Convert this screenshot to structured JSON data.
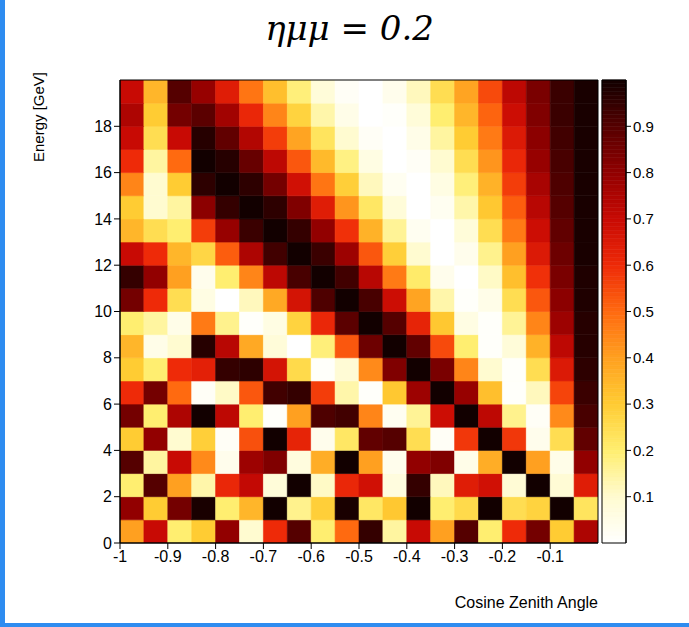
{
  "chart_data": {
    "type": "heatmap",
    "title": "ημμ = 0.2",
    "x_label": "Cosine Zenith Angle",
    "y_label": "Energy [GeV]",
    "xlim": [
      -1,
      0
    ],
    "ylim": [
      0,
      20
    ],
    "xticks": [
      -1,
      -0.9,
      -0.8,
      -0.7,
      -0.6,
      -0.5,
      -0.4,
      -0.3,
      -0.2,
      -0.1
    ],
    "yticks": [
      0,
      2,
      4,
      6,
      8,
      10,
      12,
      14,
      16,
      18
    ],
    "grid": false,
    "x_bins": [
      -1,
      -0.95,
      -0.9,
      -0.85,
      -0.8,
      -0.75,
      -0.7,
      -0.65,
      -0.6,
      -0.55,
      -0.5,
      -0.45,
      -0.4,
      -0.35,
      -0.3,
      -0.25,
      -0.2,
      -0.15,
      -0.1,
      -0.05,
      0
    ],
    "y_bins": [
      0,
      1,
      2,
      3,
      4,
      5,
      6,
      7,
      8,
      9,
      10,
      11,
      12,
      13,
      14,
      15,
      16,
      17,
      18,
      19,
      20
    ],
    "cells": [
      [
        0.4,
        0.7,
        0.2,
        0.3,
        0.8,
        0.1,
        0.6,
        0.9,
        0.2,
        0.5,
        0.95,
        0.15,
        0.7,
        0.4,
        0.9,
        0.2,
        0.6,
        0.85,
        0.3,
        0.75
      ],
      [
        0.8,
        0.3,
        0.85,
        0.99,
        0.2,
        0.35,
        1.0,
        0.17,
        0.29,
        0.99,
        0.22,
        0.31,
        1.0,
        0.2,
        0.26,
        1.0,
        0.25,
        0.28,
        1.0,
        0.23
      ],
      [
        0.2,
        0.9,
        0.4,
        0.14,
        0.61,
        0.71,
        0.08,
        1.0,
        0.11,
        0.61,
        0.68,
        0.07,
        0.95,
        0.12,
        0.64,
        0.68,
        0.09,
        1.0,
        0.09,
        0.64
      ],
      [
        0.9,
        0.15,
        0.7,
        0.44,
        0.04,
        0.78,
        0.83,
        0.07,
        0.37,
        1.0,
        0.4,
        0.04,
        0.8,
        0.83,
        0.05,
        0.37,
        1.0,
        0.4,
        0.05,
        0.8
      ],
      [
        0.3,
        0.8,
        0.1,
        0.29,
        0.02,
        0.54,
        1.0,
        0.62,
        0.04,
        0.22,
        0.88,
        0.9,
        0.25,
        0.02,
        0.58,
        1.0,
        0.58,
        0.04,
        0.25,
        0.88
      ],
      [
        0.85,
        0.2,
        0.75,
        1.0,
        0.72,
        0.2,
        0.01,
        0.4,
        0.91,
        0.93,
        0.45,
        0.03,
        0.16,
        0.69,
        1.0,
        0.72,
        0.17,
        0.02,
        0.44,
        0.92
      ],
      [
        0.6,
        0.85,
        0.5,
        0.02,
        0.11,
        0.53,
        0.93,
        0.95,
        0.57,
        0.14,
        0.01,
        0.31,
        0.78,
        1.0,
        0.79,
        0.33,
        0.01,
        0.12,
        0.56,
        0.94
      ],
      [
        0.3,
        0.2,
        0.6,
        0.63,
        0.95,
        0.96,
        0.67,
        0.26,
        0.01,
        0.09,
        0.44,
        0.83,
        1.0,
        0.84,
        0.45,
        0.1,
        0.01,
        0.25,
        0.65,
        0.96
      ],
      [
        0.35,
        0.05,
        0.1,
        0.97,
        0.73,
        0.38,
        0.08,
        0.0,
        0.19,
        0.53,
        0.86,
        1.0,
        0.88,
        0.55,
        0.2,
        0.01,
        0.08,
        0.36,
        0.72,
        0.97
      ],
      [
        0.2,
        0.15,
        0.05,
        0.47,
        0.17,
        0.01,
        0.06,
        0.28,
        0.61,
        0.89,
        1.0,
        0.9,
        0.62,
        0.31,
        0.06,
        0.01,
        0.16,
        0.45,
        0.78,
        0.97
      ],
      [
        0.85,
        0.6,
        0.25,
        0.06,
        0.0,
        0.12,
        0.38,
        0.67,
        0.91,
        1.0,
        0.92,
        0.69,
        0.39,
        0.14,
        0.01,
        0.05,
        0.25,
        0.53,
        0.81,
        0.98
      ],
      [
        0.95,
        0.8,
        0.4,
        0.04,
        0.2,
        0.45,
        0.72,
        0.92,
        1.0,
        0.93,
        0.73,
        0.47,
        0.21,
        0.04,
        0.0,
        0.11,
        0.33,
        0.59,
        0.84,
        0.98
      ],
      [
        0.7,
        0.6,
        0.35,
        0.27,
        0.52,
        0.75,
        0.93,
        1.0,
        0.94,
        0.78,
        0.53,
        0.29,
        0.1,
        0.0,
        0.04,
        0.17,
        0.4,
        0.65,
        0.86,
        0.99
      ],
      [
        0.35,
        0.25,
        0.2,
        0.57,
        0.79,
        0.94,
        1.0,
        0.95,
        0.8,
        0.59,
        0.36,
        0.16,
        0.03,
        0.0,
        0.08,
        0.25,
        0.47,
        0.69,
        0.88,
        0.99
      ],
      [
        0.3,
        0.1,
        0.15,
        0.81,
        0.95,
        1.0,
        0.96,
        0.83,
        0.64,
        0.42,
        0.22,
        0.08,
        0.0,
        0.03,
        0.14,
        0.31,
        0.52,
        0.73,
        0.9,
        0.99
      ],
      [
        0.45,
        0.1,
        0.3,
        0.96,
        1.0,
        0.96,
        0.85,
        0.68,
        0.48,
        0.29,
        0.12,
        0.03,
        0.0,
        0.06,
        0.19,
        0.36,
        0.57,
        0.76,
        0.91,
        0.99
      ],
      [
        0.6,
        0.15,
        0.5,
        1.0,
        0.97,
        0.87,
        0.72,
        0.53,
        0.34,
        0.18,
        0.06,
        0.0,
        0.02,
        0.1,
        0.25,
        0.42,
        0.61,
        0.79,
        0.92,
        0.99
      ],
      [
        0.7,
        0.25,
        0.7,
        0.97,
        0.88,
        0.74,
        0.57,
        0.39,
        0.23,
        0.1,
        0.02,
        0.0,
        0.05,
        0.15,
        0.3,
        0.47,
        0.65,
        0.81,
        0.93,
        0.99
      ],
      [
        0.75,
        0.3,
        0.85,
        0.89,
        0.77,
        0.61,
        0.45,
        0.28,
        0.14,
        0.05,
        0.0,
        0.01,
        0.08,
        0.2,
        0.35,
        0.51,
        0.69,
        0.83,
        0.94,
        0.99
      ],
      [
        0.7,
        0.35,
        0.9,
        0.79,
        0.64,
        0.48,
        0.33,
        0.19,
        0.08,
        0.02,
        0.0,
        0.04,
        0.12,
        0.25,
        0.39,
        0.55,
        0.72,
        0.84,
        0.94,
        0.99
      ]
    ],
    "colorbar": {
      "range": [
        0,
        1
      ],
      "ticks": [
        0.1,
        0.2,
        0.3,
        0.4,
        0.5,
        0.6,
        0.7,
        0.8,
        0.9
      ]
    }
  }
}
